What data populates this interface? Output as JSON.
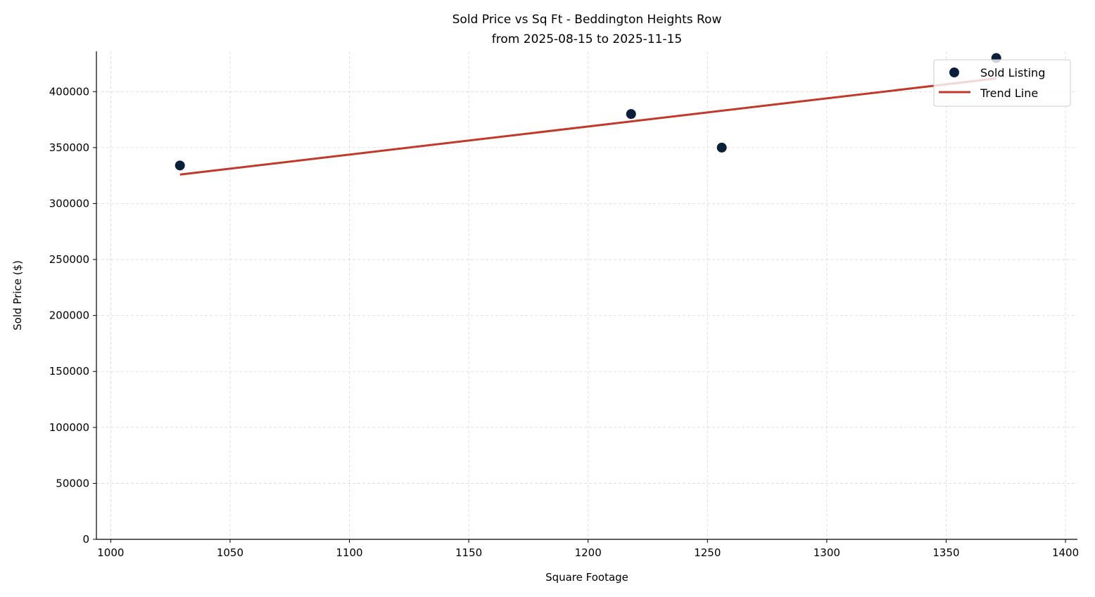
{
  "chart_data": {
    "type": "scatter",
    "title": "Sold Price vs Sq Ft - Beddington Heights Row",
    "subtitle": "from 2025-08-15 to 2025-11-15",
    "xlabel": "Square Footage",
    "ylabel": "Sold Price ($)",
    "xlim": [
      994,
      1405
    ],
    "ylim": [
      0,
      436000
    ],
    "xticks": [
      1000,
      1050,
      1100,
      1150,
      1200,
      1250,
      1300,
      1350,
      1400
    ],
    "yticks": [
      0,
      50000,
      100000,
      150000,
      200000,
      250000,
      300000,
      350000,
      400000
    ],
    "grid": true,
    "legend_placement": "top-right",
    "series": [
      {
        "name": "Sold Listing",
        "kind": "scatter",
        "color": "#0b1f3a",
        "x": [
          1029,
          1218,
          1256,
          1371
        ],
        "y": [
          334000,
          380000,
          350000,
          430000
        ]
      },
      {
        "name": "Trend Line",
        "kind": "line",
        "color": "#c0392b",
        "x": [
          1029,
          1371
        ],
        "y": [
          325900,
          411800
        ]
      }
    ]
  }
}
